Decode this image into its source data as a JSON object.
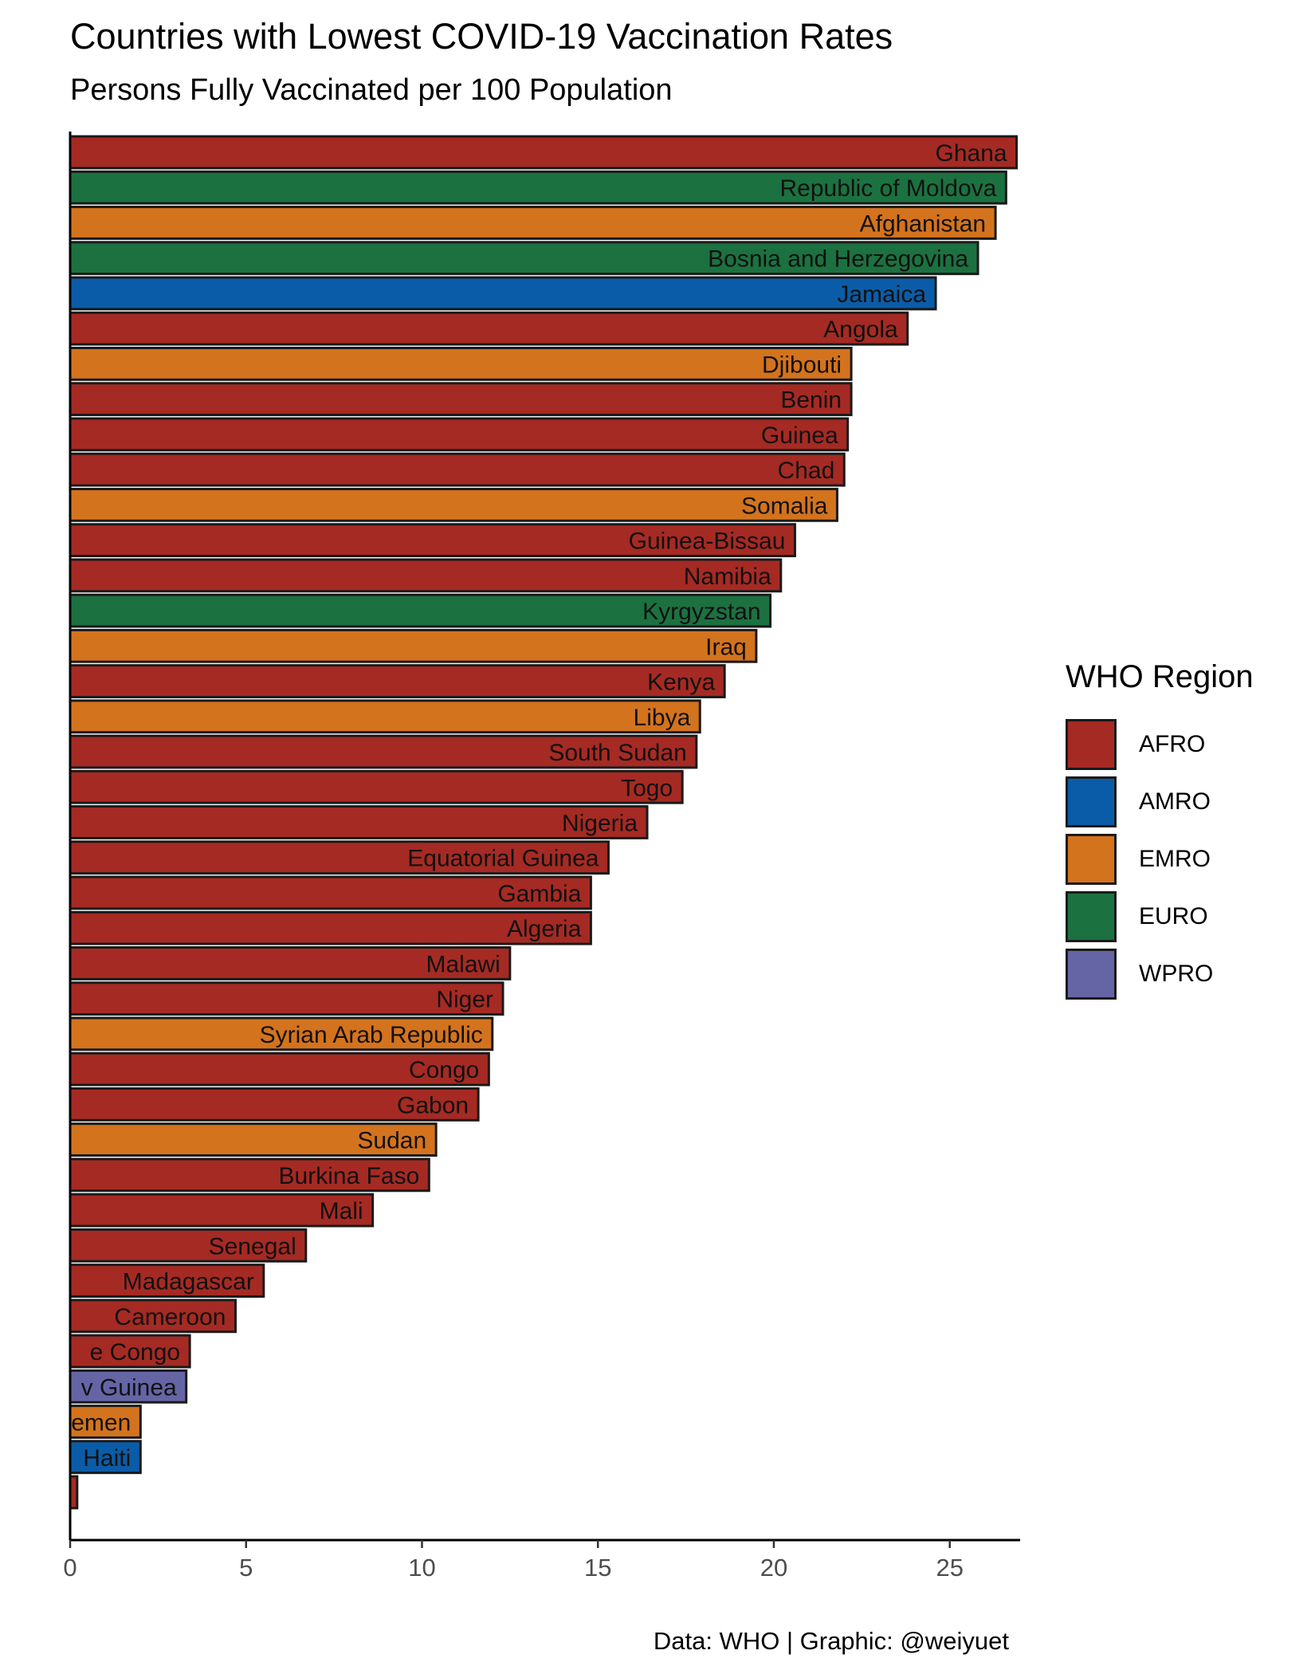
{
  "title": "Countries with Lowest COVID-19 Vaccination Rates",
  "subtitle": "Persons Fully Vaccinated per 100 Population",
  "caption": "Data: WHO | Graphic: @weiyuet",
  "legend": {
    "title": "WHO Region",
    "items": [
      {
        "name": "AFRO",
        "color": "#a52a23"
      },
      {
        "name": "AMRO",
        "color": "#0b5ca8"
      },
      {
        "name": "EMRO",
        "color": "#d4731d"
      },
      {
        "name": "EURO",
        "color": "#1c7140"
      },
      {
        "name": "WPRO",
        "color": "#6565a5"
      }
    ]
  },
  "chart_data": {
    "type": "bar",
    "orientation": "horizontal",
    "title": "Countries with Lowest COVID-19 Vaccination Rates",
    "subtitle": "Persons Fully Vaccinated per 100 Population",
    "xlabel": "",
    "ylabel": "",
    "xlim": [
      0,
      27
    ],
    "x_ticks": [
      0,
      5,
      10,
      15,
      20,
      25
    ],
    "grid": false,
    "legend_placement": "right",
    "bars": [
      {
        "label": "Ghana",
        "value": 26.9,
        "region": "AFRO"
      },
      {
        "label": "Republic of Moldova",
        "value": 26.6,
        "region": "EURO"
      },
      {
        "label": "Afghanistan",
        "value": 26.3,
        "region": "EMRO"
      },
      {
        "label": "Bosnia and Herzegovina",
        "value": 25.8,
        "region": "EURO"
      },
      {
        "label": "Jamaica",
        "value": 24.6,
        "region": "AMRO"
      },
      {
        "label": "Angola",
        "value": 23.8,
        "region": "AFRO"
      },
      {
        "label": "Djibouti",
        "value": 22.2,
        "region": "EMRO"
      },
      {
        "label": "Benin",
        "value": 22.2,
        "region": "AFRO"
      },
      {
        "label": "Guinea",
        "value": 22.1,
        "region": "AFRO"
      },
      {
        "label": "Chad",
        "value": 22.0,
        "region": "AFRO"
      },
      {
        "label": "Somalia",
        "value": 21.8,
        "region": "EMRO"
      },
      {
        "label": "Guinea-Bissau",
        "value": 20.6,
        "region": "AFRO"
      },
      {
        "label": "Namibia",
        "value": 20.2,
        "region": "AFRO"
      },
      {
        "label": "Kyrgyzstan",
        "value": 19.9,
        "region": "EURO"
      },
      {
        "label": "Iraq",
        "value": 19.5,
        "region": "EMRO"
      },
      {
        "label": "Kenya",
        "value": 18.6,
        "region": "AFRO"
      },
      {
        "label": "Libya",
        "value": 17.9,
        "region": "EMRO"
      },
      {
        "label": "South Sudan",
        "value": 17.8,
        "region": "AFRO"
      },
      {
        "label": "Togo",
        "value": 17.4,
        "region": "AFRO"
      },
      {
        "label": "Nigeria",
        "value": 16.4,
        "region": "AFRO"
      },
      {
        "label": "Equatorial Guinea",
        "value": 15.3,
        "region": "AFRO"
      },
      {
        "label": "Gambia",
        "value": 14.8,
        "region": "AFRO"
      },
      {
        "label": "Algeria",
        "value": 14.8,
        "region": "AFRO"
      },
      {
        "label": "Malawi",
        "value": 12.5,
        "region": "AFRO"
      },
      {
        "label": "Niger",
        "value": 12.3,
        "region": "AFRO"
      },
      {
        "label": "Syrian Arab Republic",
        "value": 12.0,
        "region": "EMRO"
      },
      {
        "label": "Congo",
        "value": 11.9,
        "region": "AFRO"
      },
      {
        "label": "Gabon",
        "value": 11.6,
        "region": "AFRO"
      },
      {
        "label": "Sudan",
        "value": 10.4,
        "region": "EMRO"
      },
      {
        "label": "Burkina Faso",
        "value": 10.2,
        "region": "AFRO"
      },
      {
        "label": "Mali",
        "value": 8.6,
        "region": "AFRO"
      },
      {
        "label": "Senegal",
        "value": 6.7,
        "region": "AFRO"
      },
      {
        "label": "Madagascar",
        "value": 5.5,
        "region": "AFRO"
      },
      {
        "label": "Cameroon",
        "value": 4.7,
        "region": "AFRO"
      },
      {
        "label": "e Congo",
        "value": 3.4,
        "region": "AFRO"
      },
      {
        "label": "v Guinea",
        "value": 3.3,
        "region": "WPRO"
      },
      {
        "label": "emen",
        "value": 2.0,
        "region": "EMRO"
      },
      {
        "label": "Haiti",
        "value": 2.0,
        "region": "AMRO"
      },
      {
        "label": "",
        "value": 0.2,
        "region": "AFRO"
      }
    ]
  }
}
